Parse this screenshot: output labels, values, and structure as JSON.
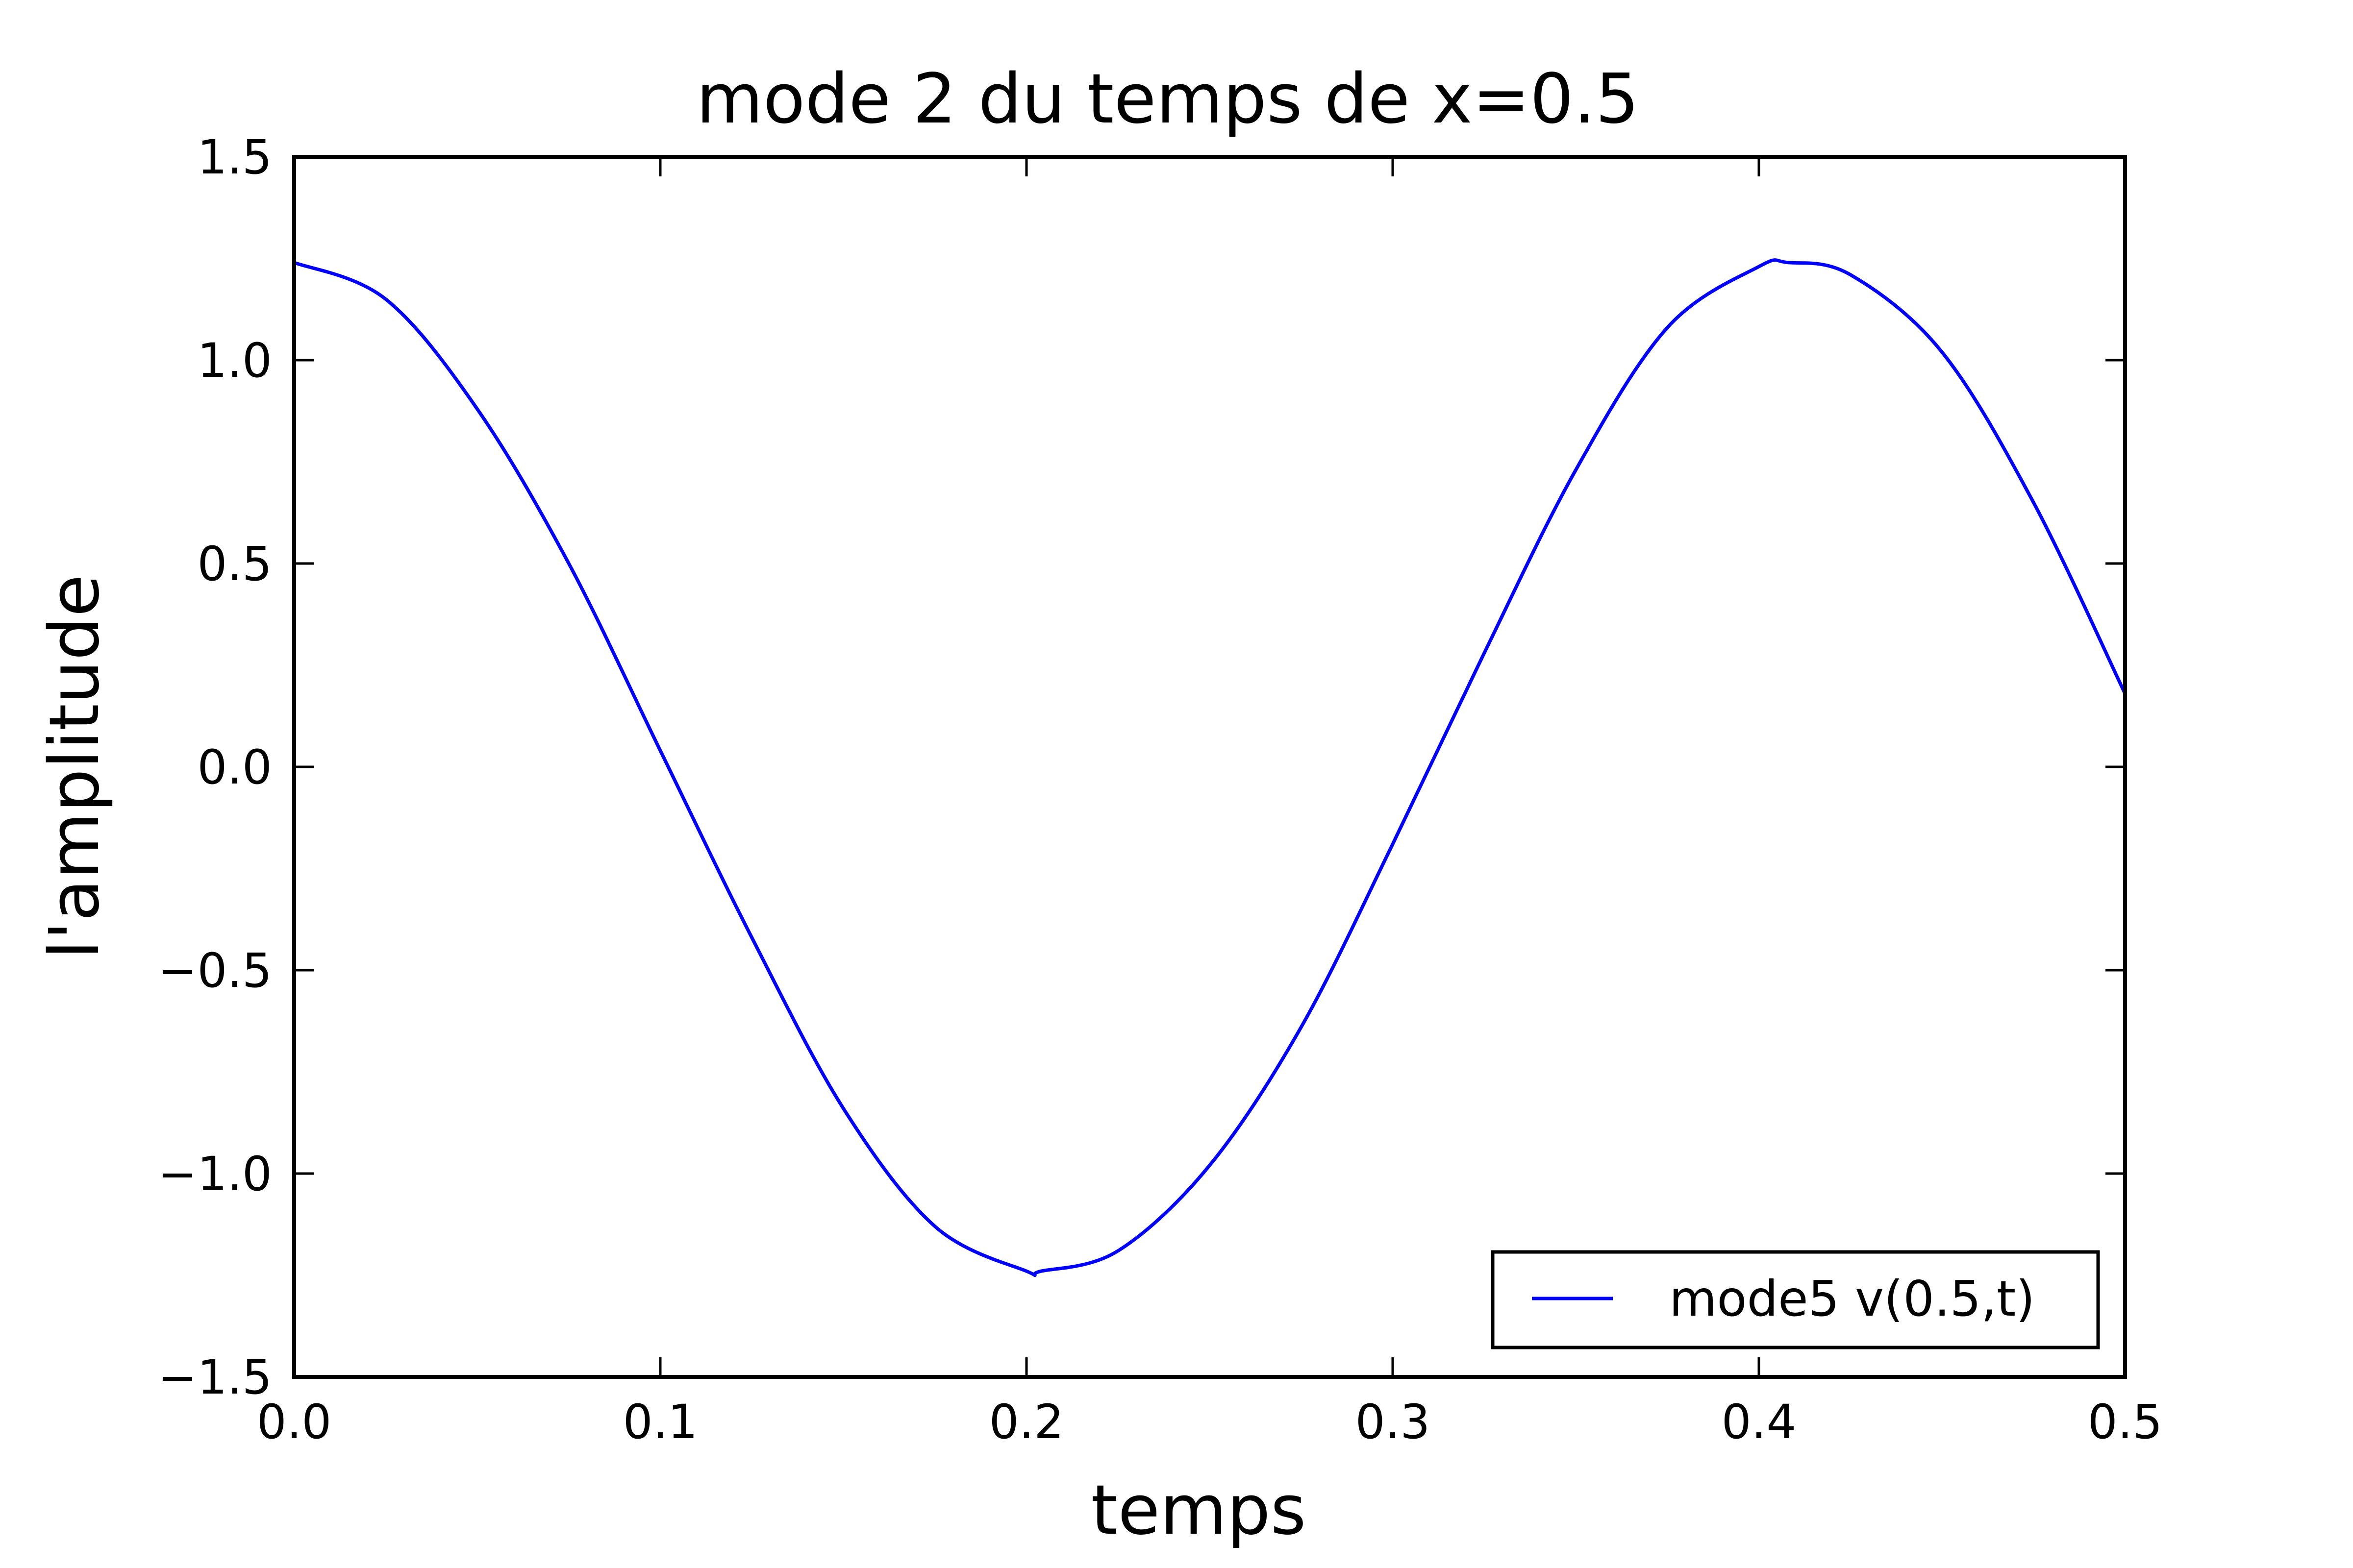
{
  "chart_data": {
    "type": "line",
    "title": "mode 2 du temps de x=0.5",
    "xlabel": "temps",
    "ylabel": "l'amplitude",
    "xlim": [
      0.0,
      0.5
    ],
    "ylim": [
      -1.5,
      1.5
    ],
    "x_ticks": [
      0.0,
      0.1,
      0.2,
      0.3,
      0.4,
      0.5
    ],
    "x_tick_labels": [
      "0.0",
      "0.1",
      "0.2",
      "0.3",
      "0.4",
      "0.5"
    ],
    "y_ticks": [
      -1.5,
      -1.0,
      -0.5,
      0.0,
      0.5,
      1.0,
      1.5
    ],
    "y_tick_labels": [
      "−1.5",
      "−1.0",
      "−0.5",
      "0.0",
      "0.5",
      "1.0",
      "1.5"
    ],
    "grid": false,
    "legend_position": "lower-right",
    "series": [
      {
        "name": "mode5 v(0.5,t)",
        "color": "#0000ff",
        "x": [
          0.0,
          0.025,
          0.05,
          0.075,
          0.1,
          0.125,
          0.15,
          0.175,
          0.2,
          0.204,
          0.225,
          0.25,
          0.275,
          0.3,
          0.325,
          0.35,
          0.375,
          0.4,
          0.408,
          0.425,
          0.45,
          0.475,
          0.5
        ],
        "y": [
          1.24,
          1.15,
          0.88,
          0.5,
          0.04,
          -0.42,
          -0.84,
          -1.13,
          -1.24,
          -1.24,
          -1.19,
          -0.98,
          -0.64,
          -0.19,
          0.28,
          0.73,
          1.08,
          1.23,
          1.24,
          1.21,
          1.02,
          0.65,
          0.18
        ]
      }
    ]
  }
}
